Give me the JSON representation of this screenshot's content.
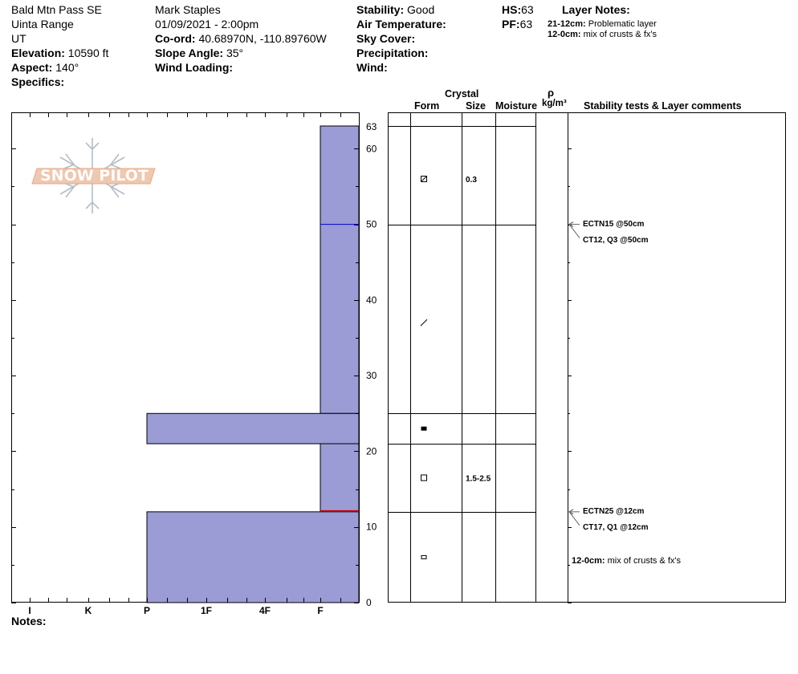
{
  "header": {
    "location": "Bald Mtn Pass SE",
    "range": "Uinta Range",
    "state": "UT",
    "elevation_label": "Elevation:",
    "elevation": "10590 ft",
    "aspect_label": "Aspect:",
    "aspect": "140°",
    "specifics_label": "Specifics:",
    "observer": "Mark Staples",
    "datetime": "01/09/2021 - 2:00pm",
    "coord_label": "Co-ord:",
    "coord": "40.68970N, -110.89760W",
    "slope_label": "Slope Angle:",
    "slope": "35°",
    "wind_loading_label": "Wind Loading:",
    "stability_label": "Stability:",
    "stability": "Good",
    "air_temp_label": "Air Temperature:",
    "sky_label": "Sky Cover:",
    "precip_label": "Precipitation:",
    "wind_label": "Wind:",
    "hs_label": "HS:",
    "hs": "63",
    "pf_label": "PF:",
    "pf": "63",
    "layer_notes_title": "Layer Notes:",
    "layer_notes": [
      {
        "range": "21-12cm:",
        "text": "Problematic layer"
      },
      {
        "range": "12-0cm:",
        "text": "mix of crusts & fx's"
      }
    ]
  },
  "logo": {
    "text": "SNOW PILOT"
  },
  "columns": {
    "crystal": "Crystal",
    "form": "Form",
    "size": "Size",
    "moisture": "Moisture",
    "rho": "ρ",
    "density_unit": "kg/m³",
    "comments": "Stability tests & Layer comments"
  },
  "chart_data": {
    "type": "hardness-profile",
    "y_axis": {
      "range": [
        0,
        63
      ],
      "ticks": [
        0,
        10,
        20,
        30,
        40,
        50,
        60
      ],
      "top_label": "63",
      "unit": "cm"
    },
    "x_axis": {
      "ticks": [
        "I",
        "K",
        "P",
        "1F",
        "4F",
        "F"
      ]
    },
    "layers": [
      {
        "top": 63,
        "bottom": 25,
        "hardness": "F",
        "form": "decomposing",
        "size": "0.3"
      },
      {
        "top": 25,
        "bottom": 21,
        "hardness": "P",
        "form": "melt-freeze crust",
        "size": ""
      },
      {
        "top": 21,
        "bottom": 12,
        "hardness": "F",
        "form": "faceted",
        "size": "1.5-2.5"
      },
      {
        "top": 12,
        "bottom": 0,
        "hardness": "P",
        "form": "rounding facets",
        "size": ""
      }
    ],
    "interfaces": [
      63,
      50,
      25,
      21,
      12
    ],
    "form_symbols": [
      {
        "depth": 56,
        "symbol": "decomposing-fragments",
        "size": "0.3"
      },
      {
        "depth": 37,
        "symbol": "slash",
        "size": ""
      },
      {
        "depth": 23,
        "symbol": "filled-square",
        "size": ""
      },
      {
        "depth": 16.5,
        "symbol": "open-square",
        "size": "1.5-2.5"
      },
      {
        "depth": 6,
        "symbol": "small-rect",
        "size": ""
      }
    ],
    "stability_tests": [
      {
        "depth": 50,
        "text": "ECTN15 @50cm"
      },
      {
        "depth": 50,
        "text": "CT12, Q3 @50cm"
      },
      {
        "depth": 12,
        "text": "ECTN25 @12cm"
      },
      {
        "depth": 12,
        "text": "CT17, Q1 @12cm"
      }
    ],
    "layer_comments": [
      {
        "depth": 5.5,
        "range": "12-0cm:",
        "text": "mix of crusts & fx's"
      }
    ],
    "fill_color": "#9b9bd6",
    "line_color": "#0000cc",
    "interface_marker_color": "#cc0000"
  },
  "footer": {
    "notes_label": "Notes:"
  }
}
